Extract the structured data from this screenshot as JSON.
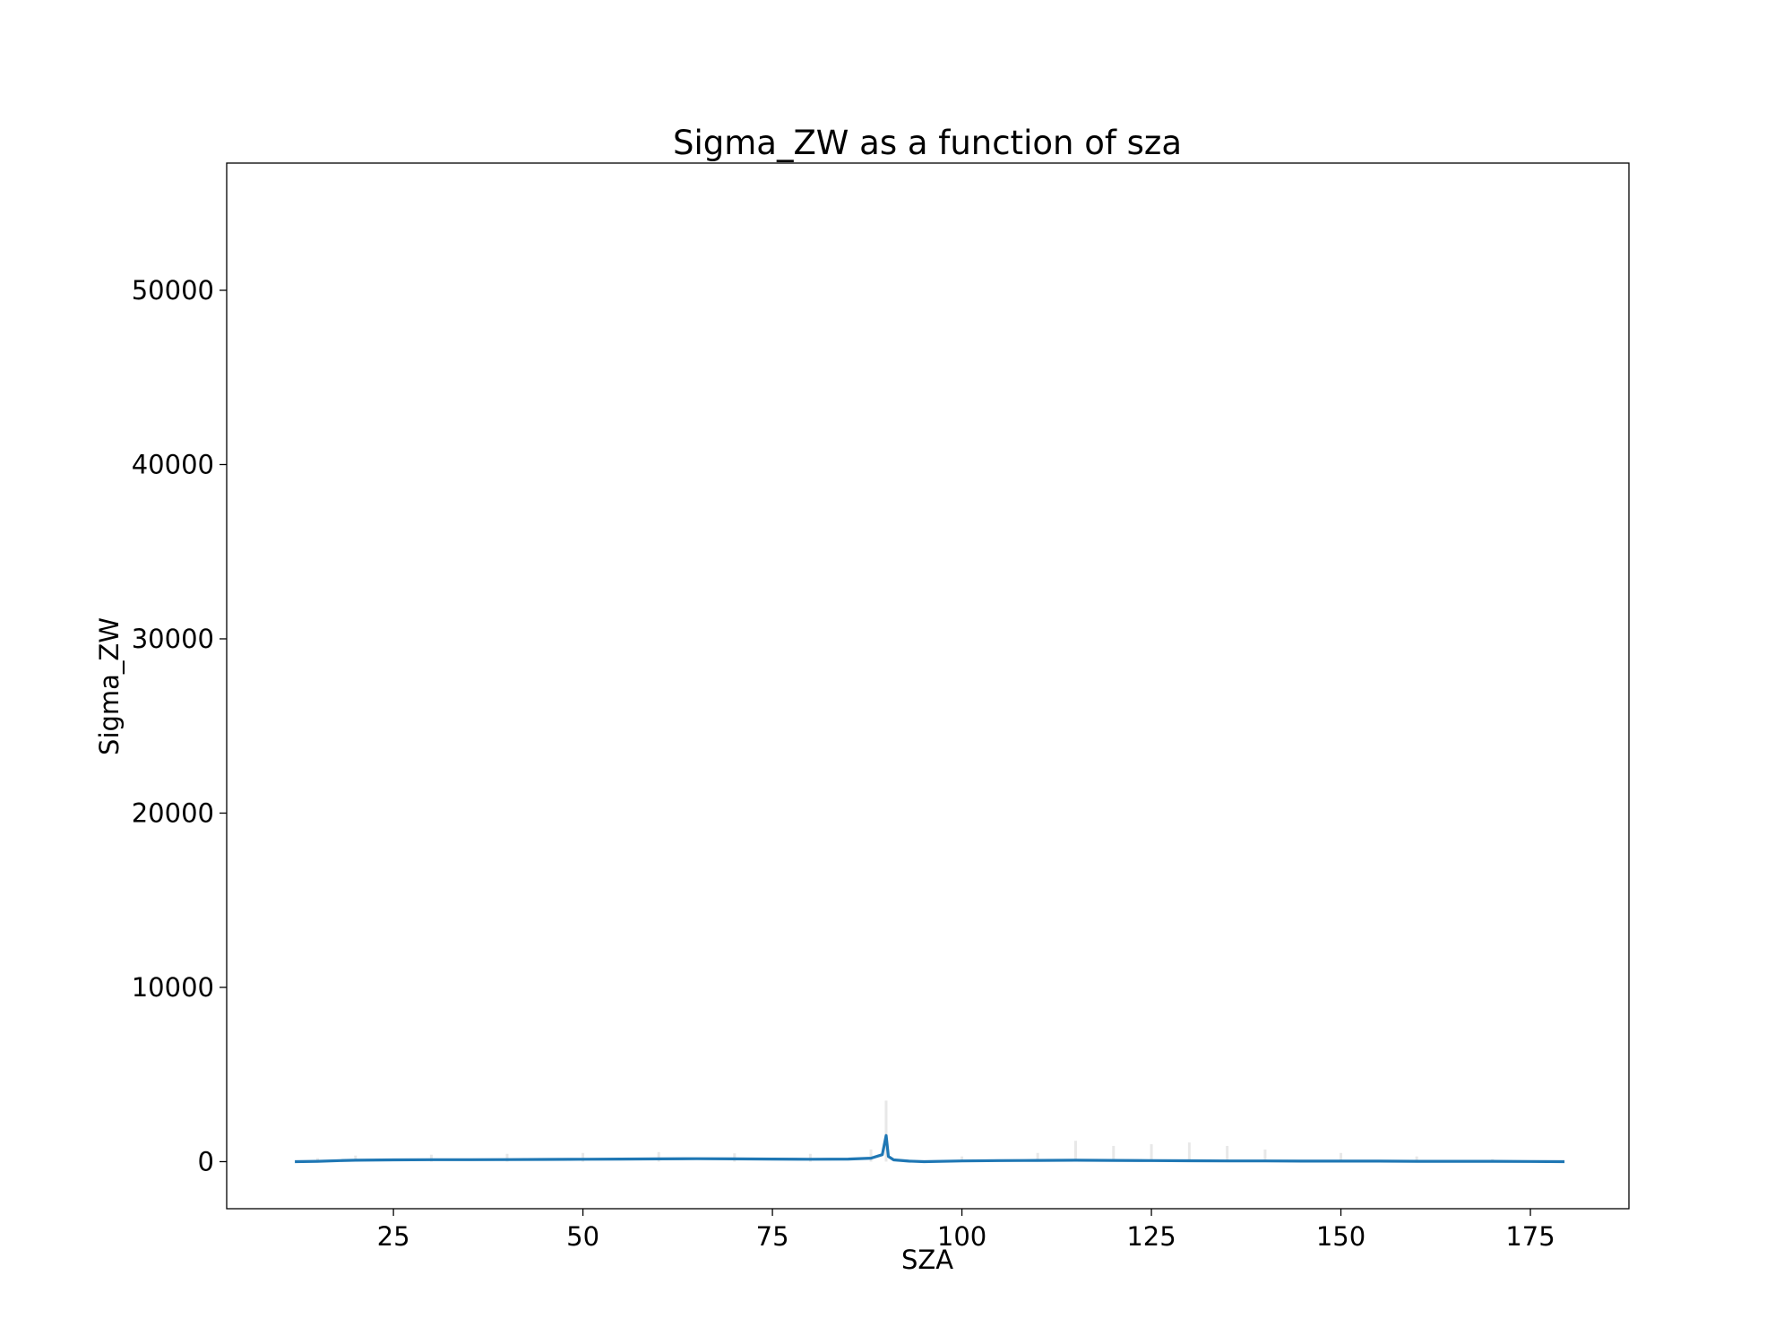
{
  "chart_data": {
    "type": "line",
    "title": "Sigma_ZW as a function of sza",
    "xlabel": "SZA",
    "ylabel": "Sigma_ZW",
    "xlim": [
      3,
      188
    ],
    "ylim": [
      -2700,
      57300
    ],
    "xticks": [
      25,
      50,
      75,
      100,
      125,
      150,
      175
    ],
    "yticks": [
      0,
      10000,
      20000,
      30000,
      40000,
      50000
    ],
    "grid": false,
    "series": [
      {
        "color": "#1f77b4",
        "x": [
          12,
          15,
          18,
          20,
          25,
          30,
          35,
          40,
          45,
          50,
          55,
          60,
          65,
          70,
          75,
          80,
          85,
          88,
          89.5,
          90,
          90.3,
          91,
          93,
          95,
          100,
          105,
          110,
          115,
          120,
          125,
          130,
          135,
          140,
          145,
          150,
          155,
          160,
          165,
          170,
          175,
          179.5
        ],
        "y": [
          0,
          20,
          60,
          80,
          100,
          110,
          110,
          120,
          130,
          140,
          150,
          160,
          170,
          160,
          150,
          140,
          150,
          200,
          400,
          1500,
          300,
          100,
          30,
          0,
          40,
          60,
          70,
          80,
          70,
          60,
          50,
          40,
          40,
          30,
          30,
          30,
          20,
          20,
          20,
          10,
          0
        ]
      }
    ],
    "scatter_background": {
      "color": "#7f7f7f",
      "x": [
        15,
        20,
        30,
        40,
        50,
        60,
        70,
        80,
        88,
        90,
        100,
        110,
        115,
        120,
        125,
        130,
        135,
        140,
        150,
        160,
        170
      ],
      "y": [
        200,
        350,
        400,
        450,
        500,
        550,
        480,
        450,
        700,
        3500,
        300,
        500,
        1200,
        900,
        1000,
        1100,
        900,
        700,
        500,
        300,
        150
      ]
    }
  }
}
